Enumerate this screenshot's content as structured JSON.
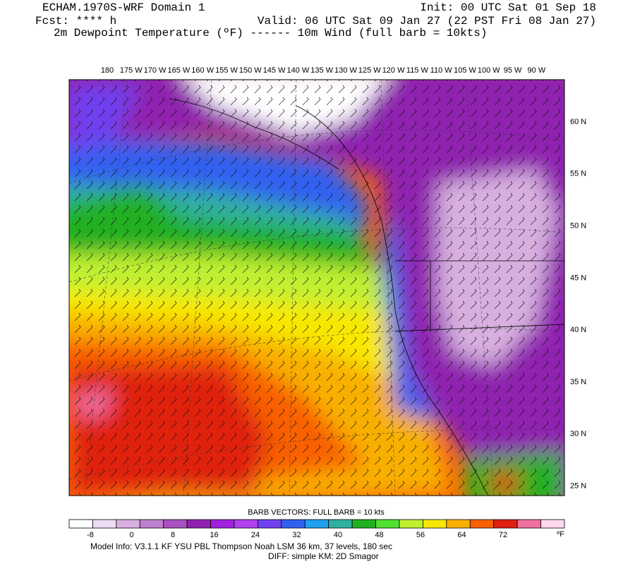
{
  "header": {
    "model": "ECHAM.1970S-WRF Domain 1",
    "init": "Init: 00 UTC Sat 01 Sep 18",
    "fcst": "Fcst: **** h",
    "valid": "Valid: 06 UTC Sat 09 Jan 27 (22 PST Fri 08 Jan 27)",
    "fields": "2m Dewpoint Temperature (ºF) ------ 10m Wind (full barb = 10kts)"
  },
  "map": {
    "lon_labels": [
      "180",
      "175 W",
      "170 W",
      "165 W",
      "160 W",
      "155 W",
      "150 W",
      "145 W",
      "140 W",
      "135 W",
      "130 W",
      "125 W",
      "120 W",
      "115 W",
      "110 W",
      "105 W",
      "100 W",
      "95 W",
      "90 W"
    ],
    "lat_labels": [
      "60 N",
      "55 N",
      "50 N",
      "45 N",
      "40 N",
      "35 N",
      "30 N",
      "25 N"
    ]
  },
  "legend": {
    "title": "BARB VECTORS:  FULL BARB = 10 kts",
    "labels": [
      "-8",
      "0",
      "8",
      "16",
      "24",
      "32",
      "40",
      "48",
      "56",
      "64",
      "72"
    ],
    "unit": "ºF",
    "colors": [
      "#ffffff",
      "#eedcf2",
      "#d8b0e0",
      "#c080d0",
      "#a850c0",
      "#9020b0",
      "#a020e0",
      "#b040f0",
      "#7040f0",
      "#3060f0",
      "#20a0f0",
      "#30b0a0",
      "#20b020",
      "#50e030",
      "#c0f030",
      "#f8e800",
      "#f8b000",
      "#f86000",
      "#e02010",
      "#f070a0",
      "#ffd8f0"
    ]
  },
  "footer": {
    "info1": "Model Info: V3.1.1    KF      YSU PBL   Thompson     Noah LSM  36 km,    37 levels,   180 sec",
    "info2": "DIFF: simple KM: 2D Smagor"
  }
}
